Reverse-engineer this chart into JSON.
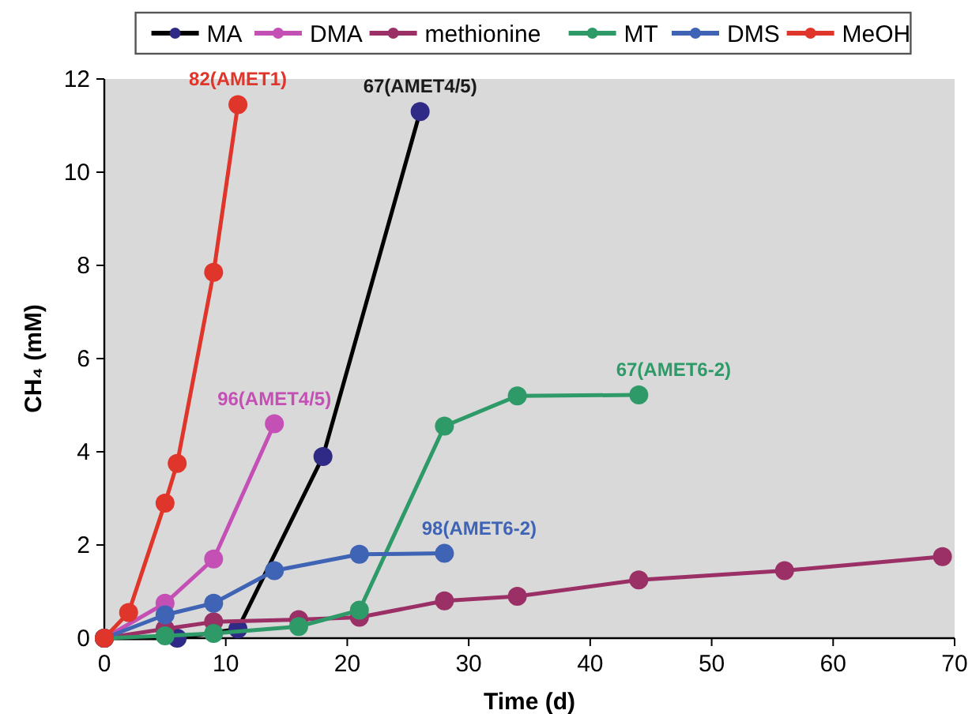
{
  "chart_data": {
    "type": "line",
    "xlabel": "Time (d)",
    "ylabel": "CH₄ (mM)",
    "xlim": [
      0,
      70
    ],
    "ylim": [
      0,
      12
    ],
    "xticks": [
      0,
      10,
      20,
      30,
      40,
      50,
      60,
      70
    ],
    "yticks": [
      0,
      2,
      4,
      6,
      8,
      10,
      12
    ],
    "grid": false,
    "legend": "top",
    "marker": "circle",
    "line_style": "solid",
    "series": [
      {
        "name": "MA",
        "color": "#000000",
        "colors": [
          "#2e2a86",
          "#2e2a86",
          "#2e2a86",
          "#2e2a86",
          "#2e2a86"
        ],
        "x": [
          0,
          6,
          11,
          18,
          26
        ],
        "values": [
          0,
          0,
          0.2,
          3.9,
          11.3
        ]
      },
      {
        "name": "DMA",
        "color": "#c44fb5",
        "x": [
          0,
          5,
          9,
          14
        ],
        "values": [
          0,
          0.75,
          1.7,
          4.6
        ]
      },
      {
        "name": "methionine",
        "color": "#9b3066",
        "x": [
          0,
          5,
          9,
          16,
          21,
          28,
          34,
          44,
          56,
          69
        ],
        "values": [
          0,
          0.2,
          0.35,
          0.4,
          0.45,
          0.8,
          0.9,
          1.25,
          1.45,
          1.75
        ]
      },
      {
        "name": "MT",
        "color": "#2e9a68",
        "x": [
          0,
          5,
          9,
          16,
          21,
          28,
          34,
          44
        ],
        "values": [
          0,
          0.05,
          0.1,
          0.25,
          0.6,
          4.55,
          5.2,
          5.22
        ]
      },
      {
        "name": "DMS",
        "color": "#3f63b5",
        "x": [
          0,
          5,
          9,
          14,
          21,
          28
        ],
        "values": [
          0,
          0.5,
          0.75,
          1.45,
          1.8,
          1.82
        ]
      },
      {
        "name": "MeOH",
        "color": "#e0352a",
        "x": [
          0,
          2,
          5,
          6,
          9,
          11
        ],
        "values": [
          0,
          0.55,
          2.9,
          3.75,
          7.85,
          11.45
        ]
      }
    ],
    "annotations": [
      {
        "text": "82(AMET1)",
        "x": 11,
        "y": 11.45
      },
      {
        "text": "67(AMET4/5)",
        "x": 26,
        "y": 11.3
      },
      {
        "text": "96(AMET4/5)",
        "x": 14,
        "y": 4.6
      },
      {
        "text": "67(AMET6-2)",
        "x": 44,
        "y": 5.22
      },
      {
        "text": "98(AMET6-2)",
        "x": 28,
        "y": 1.82
      }
    ]
  }
}
